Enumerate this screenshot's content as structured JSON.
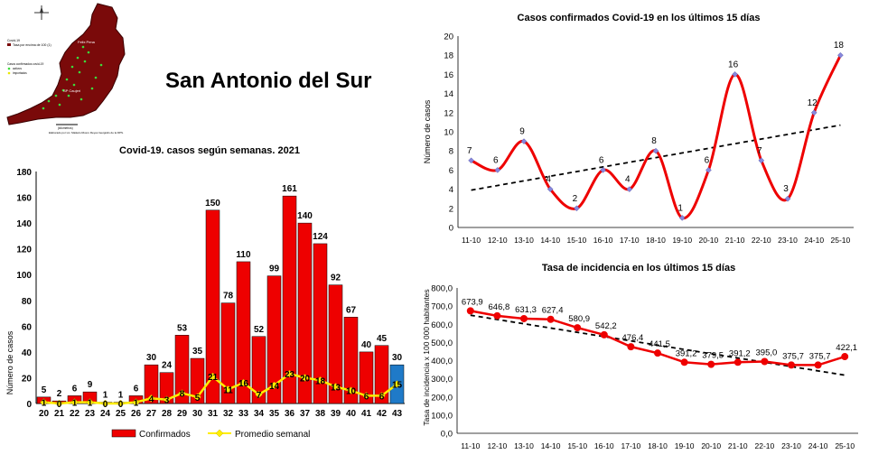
{
  "page": {
    "title": "San Antonio del Sur"
  },
  "map": {
    "place_top": "Felix Pena",
    "place_mid": "SP Caujeri",
    "legend_title": "Covid-19",
    "legend_rate": "Tasa por encima de 100 (1)",
    "legend_cases": "Casos confirmados covid-19",
    "legend_active": "activos",
    "legend_imported": "importados",
    "scale_label": "(kilometros)",
    "credit": "Elaborado por Lic. Maikelo Rivero Reyes Geógrafo de la DPS."
  },
  "chart_data": [
    {
      "type": "bar",
      "title": "Covid-19. casos según semanas. 2021",
      "ylabel": "Número de casos",
      "ylim": [
        0,
        180
      ],
      "yticks": [
        0,
        20,
        40,
        60,
        80,
        100,
        120,
        140,
        160,
        180
      ],
      "categories": [
        "20",
        "21",
        "22",
        "23",
        "24",
        "25",
        "26",
        "27",
        "28",
        "29",
        "30",
        "31",
        "32",
        "33",
        "34",
        "35",
        "36",
        "37",
        "38",
        "39",
        "40",
        "41",
        "42",
        "43"
      ],
      "series": [
        {
          "name": "Confirmados",
          "color": "#ee0000",
          "highlight_last_color": "#1f7ac8",
          "values": [
            5,
            2,
            6,
            9,
            1,
            1,
            6,
            30,
            24,
            53,
            35,
            150,
            78,
            110,
            52,
            99,
            161,
            140,
            124,
            92,
            67,
            40,
            45,
            30
          ]
        },
        {
          "name": "Promedio semanal",
          "color": "#ffee00",
          "values": [
            1,
            0,
            1,
            1,
            0,
            0,
            1,
            4,
            3,
            8,
            5,
            21,
            11,
            16,
            7,
            14,
            23,
            20,
            18,
            13,
            10,
            6,
            6,
            15
          ]
        }
      ],
      "legend": [
        "Confirmados",
        "Promedio semanal"
      ]
    },
    {
      "type": "line",
      "title": "Casos confirmados  Covid-19  en los últimos 15 días",
      "ylabel": "Número de casos",
      "ylim": [
        0,
        20
      ],
      "yticks": [
        0,
        2,
        4,
        6,
        8,
        10,
        12,
        14,
        16,
        18,
        20
      ],
      "categories": [
        "11-10",
        "12-10",
        "13-10",
        "14-10",
        "15-10",
        "16-10",
        "17-10",
        "18-10",
        "19-10",
        "20-10",
        "21-10",
        "22-10",
        "23-10",
        "24-10",
        "25-10"
      ],
      "series": [
        {
          "name": "Casos",
          "color": "#ee0000",
          "values": [
            7,
            6,
            9,
            4,
            2,
            6,
            4,
            8,
            1,
            6,
            16,
            7,
            3,
            12,
            18
          ]
        }
      ],
      "trendline": {
        "start": 3.9,
        "end": 10.7
      }
    },
    {
      "type": "line",
      "title": "Tasa de incidencia  en los últimos 15 días",
      "ylabel": "Tasa de incidencia x 100 000 habitantes",
      "ylim": [
        0,
        800
      ],
      "yticks": [
        "0,0",
        "100,0",
        "200,0",
        "300,0",
        "400,0",
        "500,0",
        "600,0",
        "700,0",
        "800,0"
      ],
      "categories": [
        "11-10",
        "12-10",
        "13-10",
        "14-10",
        "15-10",
        "16-10",
        "17-10",
        "18-10",
        "19-10",
        "20-10",
        "21-10",
        "22-10",
        "23-10",
        "24-10",
        "25-10"
      ],
      "series": [
        {
          "name": "Tasa",
          "color": "#ee0000",
          "values": [
            673.9,
            646.8,
            631.3,
            627.4,
            580.9,
            542.2,
            476.4,
            441.5,
            391.2,
            379.5,
            391.2,
            395.0,
            375.7,
            375.7,
            422.1
          ],
          "labels": [
            "673,9",
            "646,8",
            "631,3",
            "627,4",
            "580,9",
            "542,2",
            "476,4",
            "441,5",
            "391,2",
            "379,5",
            "391,2",
            "395,0",
            "375,7",
            "375,7",
            "422,1"
          ]
        }
      ],
      "trendline": {
        "start": 650,
        "end": 320
      }
    }
  ]
}
